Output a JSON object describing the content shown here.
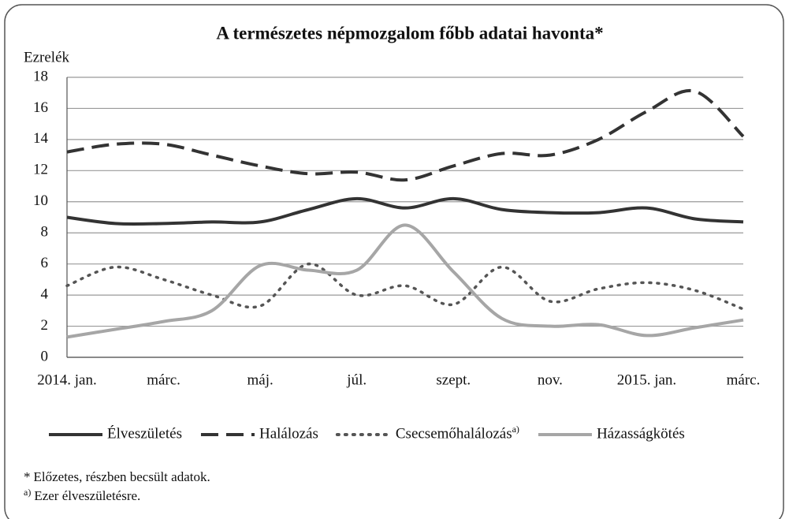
{
  "chart_data": {
    "type": "line",
    "title": "A természetes népmozgalom főbb adatai havonta*",
    "ylabel": "Ezrelék",
    "categories": [
      "2014. jan.",
      null,
      "márc.",
      null,
      "máj.",
      null,
      "júl.",
      null,
      "szept.",
      null,
      "nov.",
      null,
      "2015. jan.",
      null,
      "márc."
    ],
    "series": [
      {
        "name": "Élveszületés",
        "color": "#333333",
        "dash": "solid",
        "values": [
          9.0,
          8.6,
          8.6,
          8.7,
          8.7,
          9.5,
          10.2,
          9.6,
          10.2,
          9.5,
          9.3,
          9.3,
          9.6,
          8.9,
          8.7
        ]
      },
      {
        "name": "Halálozás",
        "color": "#333333",
        "dash": "dashed",
        "values": [
          13.2,
          13.7,
          13.7,
          13.0,
          12.3,
          11.8,
          11.9,
          11.4,
          12.3,
          13.1,
          13.0,
          14.0,
          15.8,
          17.1,
          14.2
        ]
      },
      {
        "name": "Csecsemőhalálozás",
        "marker": "a)",
        "color": "#555555",
        "dash": "dotted",
        "values": [
          4.6,
          5.8,
          5.0,
          4.0,
          3.3,
          6.0,
          4.0,
          4.6,
          3.4,
          5.8,
          3.6,
          4.4,
          4.8,
          4.3,
          3.1
        ]
      },
      {
        "name": "Házasságkötés",
        "color": "#a6a6a6",
        "dash": "solid",
        "values": [
          1.3,
          1.8,
          2.3,
          3.0,
          5.9,
          5.6,
          5.6,
          8.5,
          5.5,
          2.5,
          2.0,
          2.1,
          1.4,
          1.9,
          2.4
        ]
      }
    ],
    "ylim": [
      0,
      18
    ],
    "yticks": [
      0,
      2,
      4,
      6,
      8,
      10,
      12,
      14,
      16,
      18
    ],
    "grid": true,
    "legend": "bottom",
    "notes": [
      {
        "marker": "*",
        "text": "Előzetes, részben becsült adatok."
      },
      {
        "marker": "a)",
        "text": "Ezer élveszületésre."
      }
    ]
  }
}
